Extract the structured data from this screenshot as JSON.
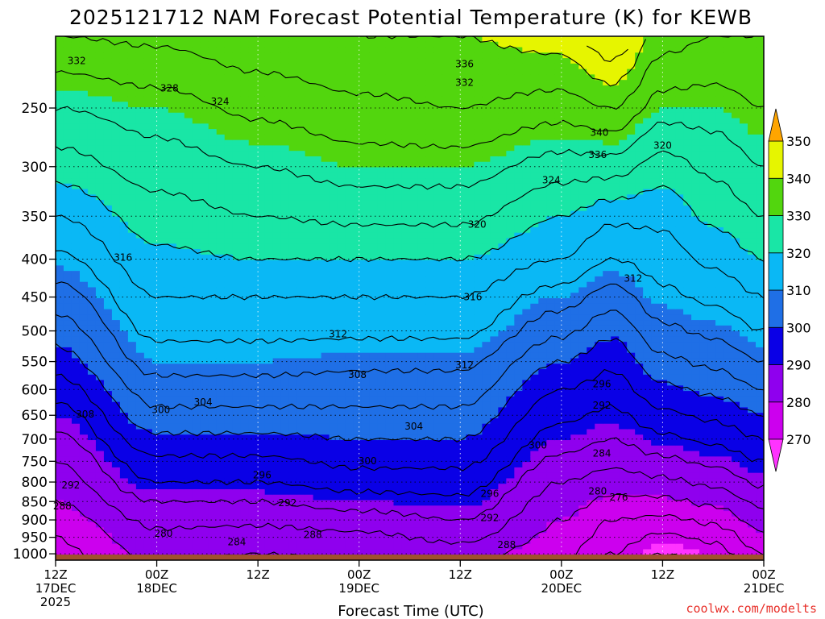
{
  "chart_data": {
    "type": "heatmap",
    "title": "2025121712 NAM Forecast Potential Temperature (K) for KEWB",
    "xlabel": "Forecast Time (UTC)",
    "ylabel": "",
    "credit": "coolwx.com/modelts",
    "y_axis": {
      "scale": "log",
      "inverted": true,
      "ylim": [
        1020,
        200
      ],
      "ticks": [
        1000,
        950,
        900,
        850,
        800,
        750,
        700,
        650,
        600,
        550,
        500,
        450,
        400,
        350,
        300,
        250
      ]
    },
    "x_axis": {
      "xlim": [
        0,
        84
      ],
      "ticks": [
        {
          "x": 0,
          "line1": "12Z",
          "line2": "17DEC",
          "line3": "2025"
        },
        {
          "x": 12,
          "line1": "00Z",
          "line2": "18DEC",
          "line3": ""
        },
        {
          "x": 24,
          "line1": "12Z",
          "line2": "",
          "line3": ""
        },
        {
          "x": 36,
          "line1": "00Z",
          "line2": "19DEC",
          "line3": ""
        },
        {
          "x": 48,
          "line1": "12Z",
          "line2": "",
          "line3": ""
        },
        {
          "x": 60,
          "line1": "00Z",
          "line2": "20DEC",
          "line3": ""
        },
        {
          "x": 72,
          "line1": "12Z",
          "line2": "",
          "line3": ""
        },
        {
          "x": 84,
          "line1": "00Z",
          "line2": "21DEC",
          "line3": ""
        }
      ]
    },
    "grid": true,
    "colorbar": {
      "position": "right",
      "bins": [
        {
          "lo": 260,
          "hi": 270,
          "color": "#ff33ff"
        },
        {
          "lo": 270,
          "hi": 280,
          "color": "#cc00ee"
        },
        {
          "lo": 280,
          "hi": 290,
          "color": "#8f00ee"
        },
        {
          "lo": 290,
          "hi": 300,
          "color": "#0a00e6"
        },
        {
          "lo": 300,
          "hi": 310,
          "color": "#1f6fe6"
        },
        {
          "lo": 310,
          "hi": 320,
          "color": "#0ab8f5"
        },
        {
          "lo": 320,
          "hi": 330,
          "color": "#19e6a6"
        },
        {
          "lo": 330,
          "hi": 340,
          "color": "#52d60e"
        },
        {
          "lo": 340,
          "hi": 350,
          "color": "#e6f500"
        },
        {
          "lo": 350,
          "hi": 360,
          "color": "#ffa500"
        }
      ],
      "labels": [
        "270",
        "280",
        "290",
        "300",
        "310",
        "320",
        "330",
        "340",
        "350"
      ]
    },
    "ground_color": "#a0522d",
    "contour_interval": 4,
    "profiles": {
      "levels_hpa": [
        1000,
        950,
        900,
        850,
        800,
        750,
        700,
        650,
        600,
        550,
        500,
        450,
        400,
        350,
        300,
        250,
        200
      ],
      "times": [
        0,
        12,
        24,
        36,
        48,
        60,
        66,
        72,
        78,
        84
      ],
      "theta_K": [
        [
          275,
          276,
          278,
          280,
          282,
          284,
          287,
          290,
          294,
          298,
          302,
          306,
          311,
          316,
          322,
          328,
          336
        ],
        [
          281,
          283,
          285,
          288,
          292,
          295,
          299,
          303,
          306,
          310,
          313,
          316,
          319,
          322,
          326,
          330,
          337
        ],
        [
          280,
          282,
          285,
          288,
          292,
          295,
          299,
          303,
          306,
          310,
          313,
          316,
          320,
          324,
          328,
          333,
          339
        ],
        [
          281,
          283,
          286,
          290,
          294,
          297,
          300,
          303,
          306,
          309,
          313,
          316,
          320,
          325,
          330,
          335,
          340
        ],
        [
          282,
          285,
          288,
          291,
          294,
          297,
          300,
          303,
          306,
          309,
          313,
          316,
          320,
          325,
          330,
          336,
          340
        ],
        [
          277,
          279,
          280,
          282,
          284,
          287,
          290,
          293,
          296,
          300,
          305,
          310,
          316,
          320,
          326,
          334,
          342
        ],
        [
          272,
          274,
          276,
          279,
          282,
          285,
          288,
          291,
          294,
          297,
          301,
          306,
          312,
          317,
          326,
          336,
          348
        ],
        [
          268,
          271,
          275,
          279,
          283,
          287,
          291,
          295,
          299,
          303,
          307,
          311,
          314,
          317,
          322,
          330,
          338
        ],
        [
          270,
          273,
          277,
          281,
          285,
          289,
          293,
          297,
          301,
          305,
          309,
          313,
          317,
          321,
          325,
          330,
          336
        ],
        [
          276,
          279,
          282,
          285,
          289,
          292,
          296,
          300,
          304,
          308,
          312,
          316,
          320,
          324,
          328,
          332,
          336
        ]
      ]
    },
    "contour_labels": [
      {
        "x": 0.8,
        "p": 862,
        "text": "288"
      },
      {
        "x": 1.8,
        "p": 808,
        "text": "292"
      },
      {
        "x": 3.5,
        "p": 648,
        "text": "308"
      },
      {
        "x": 12.8,
        "p": 939,
        "text": "280"
      },
      {
        "x": 12.5,
        "p": 639,
        "text": "300"
      },
      {
        "x": 17.5,
        "p": 624,
        "text": "304"
      },
      {
        "x": 21.5,
        "p": 964,
        "text": "284"
      },
      {
        "x": 24.5,
        "p": 783,
        "text": "296"
      },
      {
        "x": 27.5,
        "p": 854,
        "text": "292"
      },
      {
        "x": 30.5,
        "p": 942,
        "text": "288"
      },
      {
        "x": 33.5,
        "p": 505,
        "text": "312"
      },
      {
        "x": 35.8,
        "p": 573,
        "text": "308"
      },
      {
        "x": 37.0,
        "p": 749,
        "text": "300"
      },
      {
        "x": 42.5,
        "p": 673,
        "text": "304"
      },
      {
        "x": 48.5,
        "p": 556,
        "text": "312"
      },
      {
        "x": 49.5,
        "p": 450,
        "text": "316"
      },
      {
        "x": 50.0,
        "p": 359,
        "text": "320"
      },
      {
        "x": 51.5,
        "p": 829,
        "text": "296"
      },
      {
        "x": 51.5,
        "p": 894,
        "text": "292"
      },
      {
        "x": 53.5,
        "p": 972,
        "text": "288"
      },
      {
        "x": 57.2,
        "p": 714,
        "text": "300"
      },
      {
        "x": 58.8,
        "p": 313,
        "text": "324"
      },
      {
        "x": 64.3,
        "p": 289,
        "text": "336"
      },
      {
        "x": 64.5,
        "p": 270,
        "text": "340"
      },
      {
        "x": 64.3,
        "p": 823,
        "text": "280"
      },
      {
        "x": 64.8,
        "p": 590,
        "text": "296"
      },
      {
        "x": 64.8,
        "p": 630,
        "text": "292"
      },
      {
        "x": 64.8,
        "p": 732,
        "text": "284"
      },
      {
        "x": 66.8,
        "p": 839,
        "text": "276"
      },
      {
        "x": 68.5,
        "p": 425,
        "text": "312"
      },
      {
        "x": 72.0,
        "p": 281,
        "text": "320"
      },
      {
        "x": 48.5,
        "p": 218,
        "text": "336"
      },
      {
        "x": 48.5,
        "p": 231,
        "text": "332"
      },
      {
        "x": 2.5,
        "p": 216,
        "text": "332"
      },
      {
        "x": 13.5,
        "p": 235,
        "text": "328"
      },
      {
        "x": 19.5,
        "p": 245,
        "text": "324"
      },
      {
        "x": 8.0,
        "p": 398,
        "text": "316"
      }
    ]
  }
}
